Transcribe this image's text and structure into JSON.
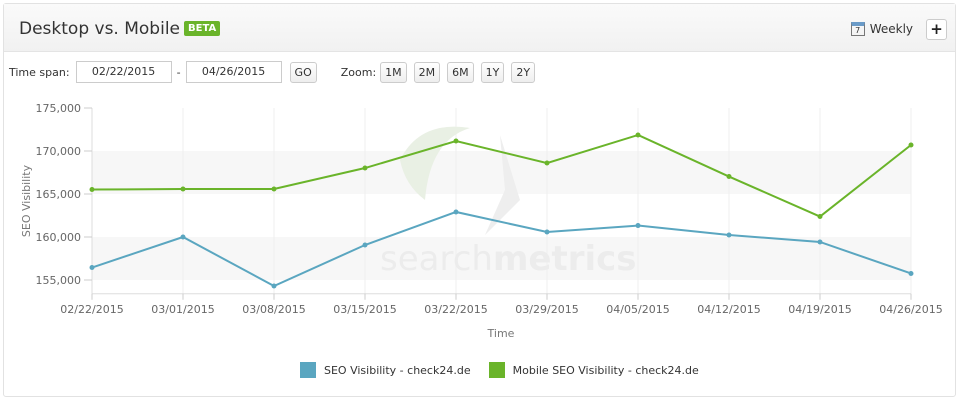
{
  "header": {
    "title": "Desktop vs. Mobile",
    "badge": "BETA",
    "interval_label": "Weekly",
    "interval_icon": "calendar-icon",
    "calendar_day": "7",
    "add_label": "+"
  },
  "controls": {
    "time_span_label": "Time span:",
    "start_date": "02/22/2015",
    "separator": "-",
    "end_date": "04/26/2015",
    "go_label": "GO",
    "zoom_label": "Zoom:",
    "zoom_options": [
      "1M",
      "2M",
      "6M",
      "1Y",
      "2Y"
    ]
  },
  "watermark": "searchmetrics",
  "chart_data": {
    "type": "line",
    "xlabel": "Time",
    "ylabel": "SEO Visibility",
    "categories": [
      "02/22/2015",
      "03/01/2015",
      "03/08/2015",
      "03/15/2015",
      "03/22/2015",
      "03/29/2015",
      "04/05/2015",
      "04/12/2015",
      "04/19/2015",
      "04/26/2015"
    ],
    "yticks": [
      155000,
      160000,
      165000,
      170000,
      175000
    ],
    "ytick_labels": [
      "155,000",
      "160,000",
      "165,000",
      "170,000",
      "175,000"
    ],
    "ylim": [
      153400,
      175000
    ],
    "grid": "alternating horizontal bands, vertical gridlines",
    "legend_position": "bottom",
    "series": [
      {
        "name": "SEO Visibility - check24.de",
        "color": "#5aa6c0",
        "values": [
          156450,
          160000,
          154300,
          159070,
          162910,
          160580,
          161330,
          160230,
          159420,
          155760
        ]
      },
      {
        "name": "Mobile SEO Visibility - check24.de",
        "color": "#6ab42a",
        "values": [
          165520,
          165580,
          165580,
          168020,
          171160,
          168600,
          171860,
          167030,
          162380,
          170700
        ]
      }
    ]
  }
}
